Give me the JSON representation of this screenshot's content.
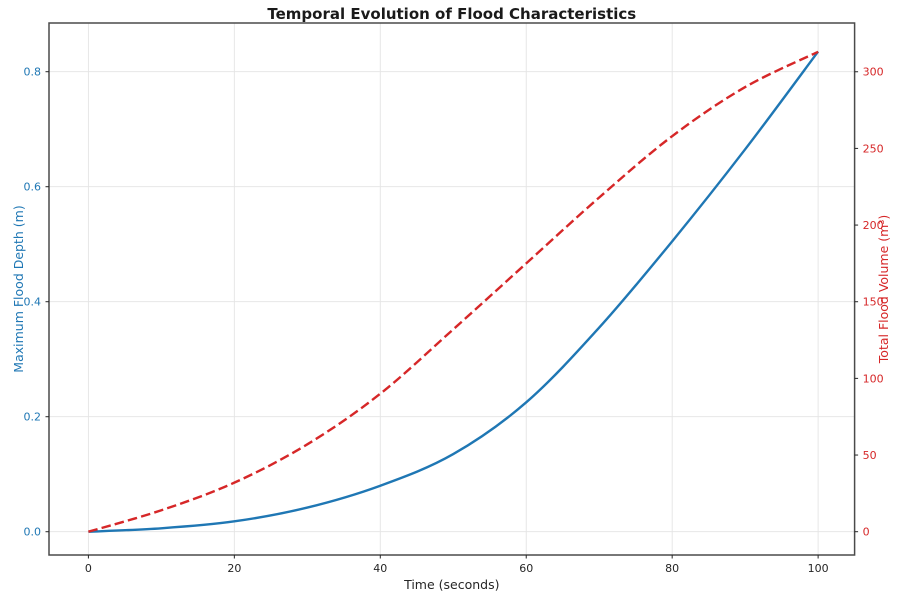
{
  "chart_data": {
    "type": "line",
    "title": "Temporal Evolution of Flood Characteristics",
    "xlabel": "Time (seconds)",
    "ylabel_left": "Maximum Flood Depth (m)",
    "ylabel_right": "Total Flood Volume (m³)",
    "x": [
      0,
      10,
      20,
      30,
      40,
      50,
      60,
      70,
      80,
      90,
      100
    ],
    "series": [
      {
        "name": "Maximum Flood Depth",
        "axis": "left",
        "style": "solid",
        "color": "#1f77b4",
        "values": [
          0.0,
          0.006,
          0.018,
          0.042,
          0.08,
          0.135,
          0.225,
          0.355,
          0.505,
          0.665,
          0.835
        ]
      },
      {
        "name": "Total Flood Volume",
        "axis": "right",
        "style": "dashed",
        "color": "#d62728",
        "values": [
          0,
          14,
          32,
          57,
          90,
          132,
          175,
          218,
          258,
          290,
          313
        ]
      }
    ],
    "x_ticks": {
      "values": [
        0,
        20,
        40,
        60,
        80,
        100
      ],
      "labels": [
        "0",
        "20",
        "40",
        "60",
        "80",
        "100"
      ]
    },
    "y_ticks_left": {
      "values": [
        0.0,
        0.2,
        0.4,
        0.6,
        0.8
      ],
      "labels": [
        "0.0",
        "0.2",
        "0.4",
        "0.6",
        "0.8"
      ]
    },
    "y_ticks_right": {
      "values": [
        0,
        50,
        100,
        150,
        200,
        250,
        300
      ],
      "labels": [
        "0",
        "50",
        "100",
        "150",
        "200",
        "250",
        "300"
      ]
    },
    "xlim": [
      -5.4,
      105.0
    ],
    "ylim_left": [
      -0.0405,
      0.8847
    ],
    "ylim_right": [
      -15.2,
      331.8
    ],
    "grid": true,
    "legend": "none",
    "colors": {
      "depth_line": "#1f77b4",
      "volume_line": "#d62728",
      "tick_text": "#262626",
      "grid": "#e4e4e4",
      "spine": "#4a4a4a",
      "background": "#ffffff"
    }
  }
}
